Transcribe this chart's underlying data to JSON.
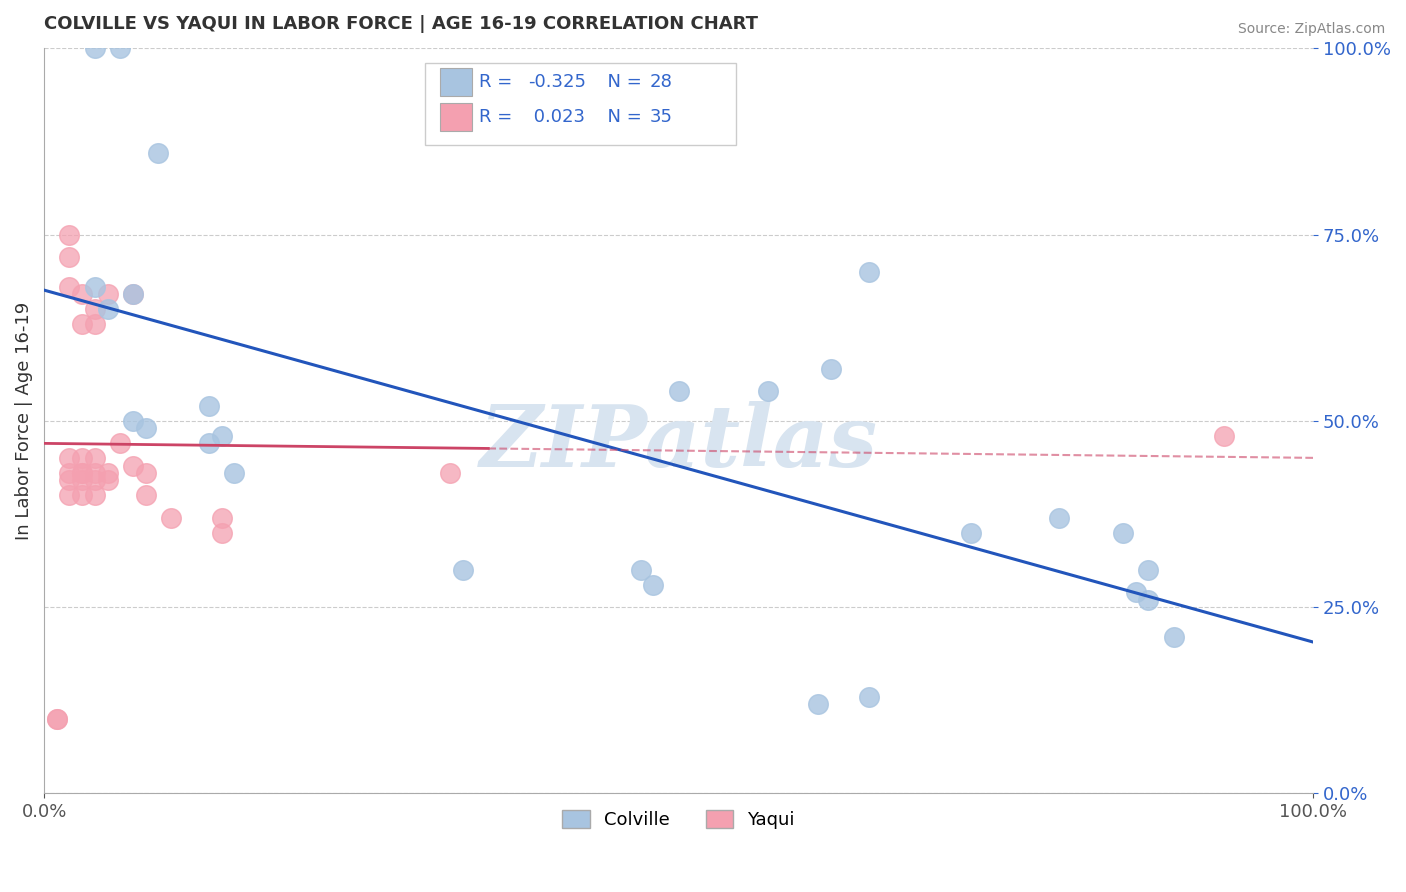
{
  "title": "COLVILLE VS YAQUI IN LABOR FORCE | AGE 16-19 CORRELATION CHART",
  "source": "Source: ZipAtlas.com",
  "ylabel": "In Labor Force | Age 16-19",
  "xlim": [
    0,
    1
  ],
  "ylim": [
    0,
    1
  ],
  "ytick_values": [
    0.0,
    0.25,
    0.5,
    0.75,
    1.0
  ],
  "ytick_labels": [
    "0.0%",
    "25.0%",
    "50.0%",
    "75.0%",
    "100.0%"
  ],
  "xtick_values": [
    0.0,
    1.0
  ],
  "xtick_labels": [
    "0.0%",
    "100.0%"
  ],
  "colville_R": -0.325,
  "colville_N": 28,
  "yaqui_R": 0.023,
  "yaqui_N": 35,
  "colville_color": "#a8c4e0",
  "yaqui_color": "#f4a0b0",
  "colville_line_color": "#2255bb",
  "yaqui_line_color": "#cc4466",
  "legend_text_color": "#3366cc",
  "bg_color": "#ffffff",
  "grid_color": "#cccccc",
  "colville_x": [
    0.04,
    0.06,
    0.09,
    0.13,
    0.14,
    0.04,
    0.05,
    0.07,
    0.07,
    0.08,
    0.13,
    0.15,
    0.33,
    0.47,
    0.48,
    0.5,
    0.57,
    0.62,
    0.65,
    0.73,
    0.8,
    0.85,
    0.87,
    0.87,
    0.61,
    0.65,
    0.86,
    0.89
  ],
  "colville_y": [
    1.0,
    1.0,
    0.86,
    0.52,
    0.48,
    0.68,
    0.65,
    0.67,
    0.5,
    0.49,
    0.47,
    0.43,
    0.3,
    0.3,
    0.28,
    0.54,
    0.54,
    0.57,
    0.7,
    0.35,
    0.37,
    0.35,
    0.3,
    0.26,
    0.12,
    0.13,
    0.27,
    0.21
  ],
  "yaqui_x": [
    0.01,
    0.01,
    0.02,
    0.02,
    0.02,
    0.02,
    0.02,
    0.02,
    0.02,
    0.03,
    0.03,
    0.03,
    0.03,
    0.03,
    0.03,
    0.03,
    0.04,
    0.04,
    0.04,
    0.04,
    0.04,
    0.04,
    0.05,
    0.05,
    0.05,
    0.06,
    0.07,
    0.07,
    0.08,
    0.08,
    0.1,
    0.14,
    0.14,
    0.32,
    0.93
  ],
  "yaqui_y": [
    0.1,
    0.1,
    0.75,
    0.72,
    0.68,
    0.45,
    0.43,
    0.42,
    0.4,
    0.67,
    0.63,
    0.45,
    0.43,
    0.43,
    0.42,
    0.4,
    0.65,
    0.63,
    0.45,
    0.43,
    0.42,
    0.4,
    0.67,
    0.43,
    0.42,
    0.47,
    0.67,
    0.44,
    0.43,
    0.4,
    0.37,
    0.37,
    0.35,
    0.43,
    0.48
  ],
  "watermark": "ZIPatlas",
  "watermark_color": "#d8e4f0"
}
